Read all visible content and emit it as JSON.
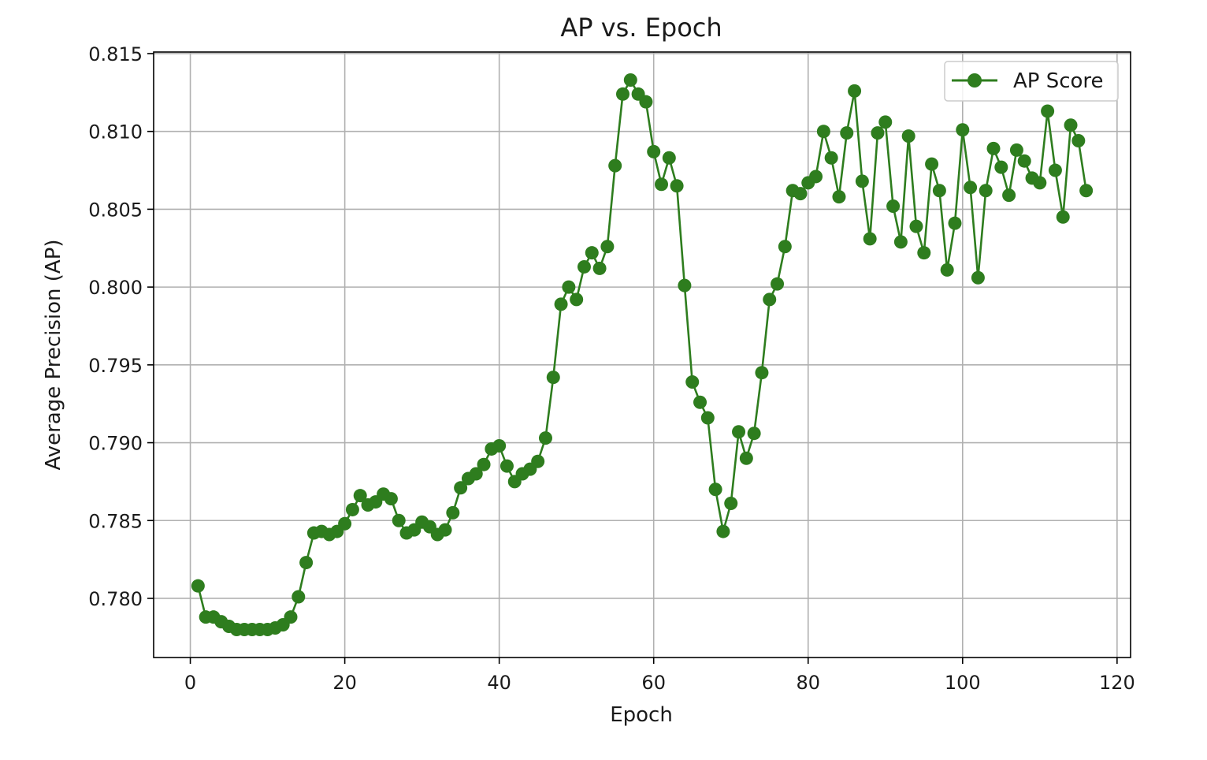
{
  "chart_data": {
    "type": "line",
    "title": "AP vs. Epoch",
    "xlabel": "Epoch",
    "ylabel": "Average Precision (AP)",
    "xlim": [
      -4.75,
      121.75
    ],
    "ylim": [
      0.7762,
      0.8151
    ],
    "xticks": [
      0,
      20,
      40,
      60,
      80,
      100,
      120
    ],
    "xtick_labels": [
      "0",
      "20",
      "40",
      "60",
      "80",
      "100",
      "120"
    ],
    "yticks": [
      0.78,
      0.785,
      0.79,
      0.795,
      0.8,
      0.805,
      0.81,
      0.815
    ],
    "ytick_labels": [
      "0.780",
      "0.785",
      "0.790",
      "0.795",
      "0.800",
      "0.805",
      "0.810",
      "0.815"
    ],
    "grid": true,
    "legend": {
      "position": "top-right",
      "entries": [
        "AP Score"
      ]
    },
    "series": [
      {
        "name": "AP Score",
        "color": "#2e7d1e",
        "marker": "circle",
        "x": [
          1,
          2,
          3,
          4,
          5,
          6,
          7,
          8,
          9,
          10,
          11,
          12,
          13,
          14,
          15,
          16,
          17,
          18,
          19,
          20,
          21,
          22,
          23,
          24,
          25,
          26,
          27,
          28,
          29,
          30,
          31,
          32,
          33,
          34,
          35,
          36,
          37,
          38,
          39,
          40,
          41,
          42,
          43,
          44,
          45,
          46,
          47,
          48,
          49,
          50,
          51,
          52,
          53,
          54,
          55,
          56,
          57,
          58,
          59,
          60,
          61,
          62,
          63,
          64,
          65,
          66,
          67,
          68,
          69,
          70,
          71,
          72,
          73,
          74,
          75,
          76,
          77,
          78,
          79,
          80,
          81,
          82,
          83,
          84,
          85,
          86,
          87,
          88,
          89,
          90,
          91,
          92,
          93,
          94,
          95,
          96,
          97,
          98,
          99,
          100,
          101,
          102,
          103,
          104,
          105,
          106,
          107,
          108,
          109,
          110,
          111,
          112,
          113,
          114,
          115,
          116
        ],
        "y": [
          0.7808,
          0.7788,
          0.7788,
          0.7785,
          0.7782,
          0.778,
          0.778,
          0.778,
          0.778,
          0.778,
          0.7781,
          0.7783,
          0.7788,
          0.7801,
          0.7823,
          0.7842,
          0.7843,
          0.7841,
          0.7843,
          0.7848,
          0.7857,
          0.7866,
          0.786,
          0.7862,
          0.7867,
          0.7864,
          0.785,
          0.7842,
          0.7844,
          0.7849,
          0.7846,
          0.7841,
          0.7844,
          0.7855,
          0.7871,
          0.7877,
          0.788,
          0.7886,
          0.7896,
          0.7898,
          0.7885,
          0.7875,
          0.788,
          0.7883,
          0.7888,
          0.7903,
          0.7942,
          0.7989,
          0.8,
          0.7992,
          0.8013,
          0.8022,
          0.8012,
          0.8026,
          0.8078,
          0.8124,
          0.8133,
          0.8124,
          0.8119,
          0.8087,
          0.8066,
          0.8083,
          0.8065,
          0.8001,
          0.7939,
          0.7926,
          0.7916,
          0.787,
          0.7843,
          0.7861,
          0.7907,
          0.789,
          0.7906,
          0.7945,
          0.7992,
          0.8002,
          0.8026,
          0.8062,
          0.806,
          0.8067,
          0.8071,
          0.81,
          0.8083,
          0.8058,
          0.8099,
          0.8126,
          0.8068,
          0.8031,
          0.8099,
          0.8106,
          0.8052,
          0.8029,
          0.8097,
          0.8039,
          0.8022,
          0.8079,
          0.8062,
          0.8011,
          0.8041,
          0.8101,
          0.8064,
          0.8006,
          0.8062,
          0.8089,
          0.8077,
          0.8059,
          0.8088,
          0.8081,
          0.807,
          0.8067,
          0.8113,
          0.8075,
          0.8045,
          0.8104,
          0.8094,
          0.8062
        ]
      }
    ]
  }
}
